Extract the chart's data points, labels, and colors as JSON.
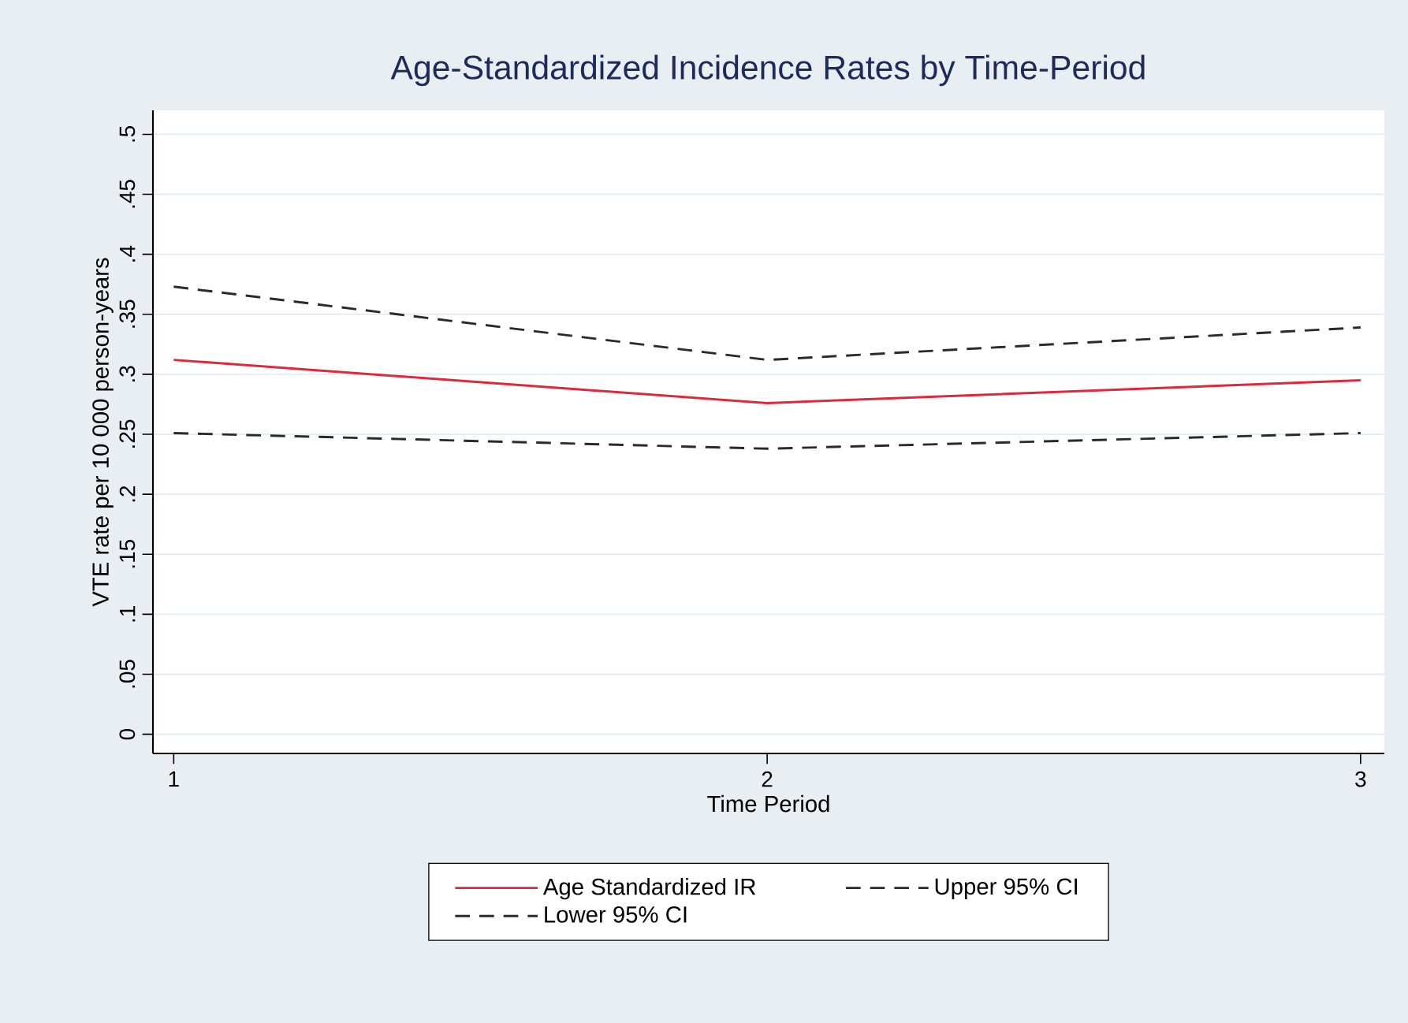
{
  "chart_data": {
    "type": "line",
    "title": "Age-Standardized Incidence Rates by Time-Period",
    "xlabel": "Time Period",
    "ylabel": "VTE rate per 10 000 person-years",
    "x": [
      1,
      2,
      3
    ],
    "series": [
      {
        "name": "Age Standardized IR",
        "color": "#e0283c",
        "line_style": "solid",
        "values": [
          0.312,
          0.276,
          0.295
        ]
      },
      {
        "name": "Upper 95% CI",
        "color": "#2a2a2a",
        "line_style": "dashed",
        "values": [
          0.373,
          0.312,
          0.339
        ]
      },
      {
        "name": "Lower 95% CI",
        "color": "#2a2a2a",
        "line_style": "dashed",
        "values": [
          0.251,
          0.238,
          0.251
        ]
      }
    ],
    "xlim": [
      0.965,
      3.04
    ],
    "ylim": [
      -0.016,
      0.52
    ],
    "xticks": [
      1,
      2,
      3
    ],
    "yticks": [
      0,
      {
        "value": 0.05,
        "label": ".05"
      },
      {
        "value": 0.1,
        "label": ".1"
      },
      {
        "value": 0.15,
        "label": ".15"
      },
      {
        "value": 0.2,
        "label": ".2"
      },
      {
        "value": 0.25,
        "label": ".25"
      },
      {
        "value": 0.3,
        "label": ".3"
      },
      {
        "value": 0.35,
        "label": ".35"
      },
      {
        "value": 0.4,
        "label": ".4"
      },
      {
        "value": 0.45,
        "label": ".45"
      },
      {
        "value": 0.5,
        "label": ".5"
      }
    ],
    "grid": "y",
    "legend": "bottom",
    "marker": "none"
  }
}
